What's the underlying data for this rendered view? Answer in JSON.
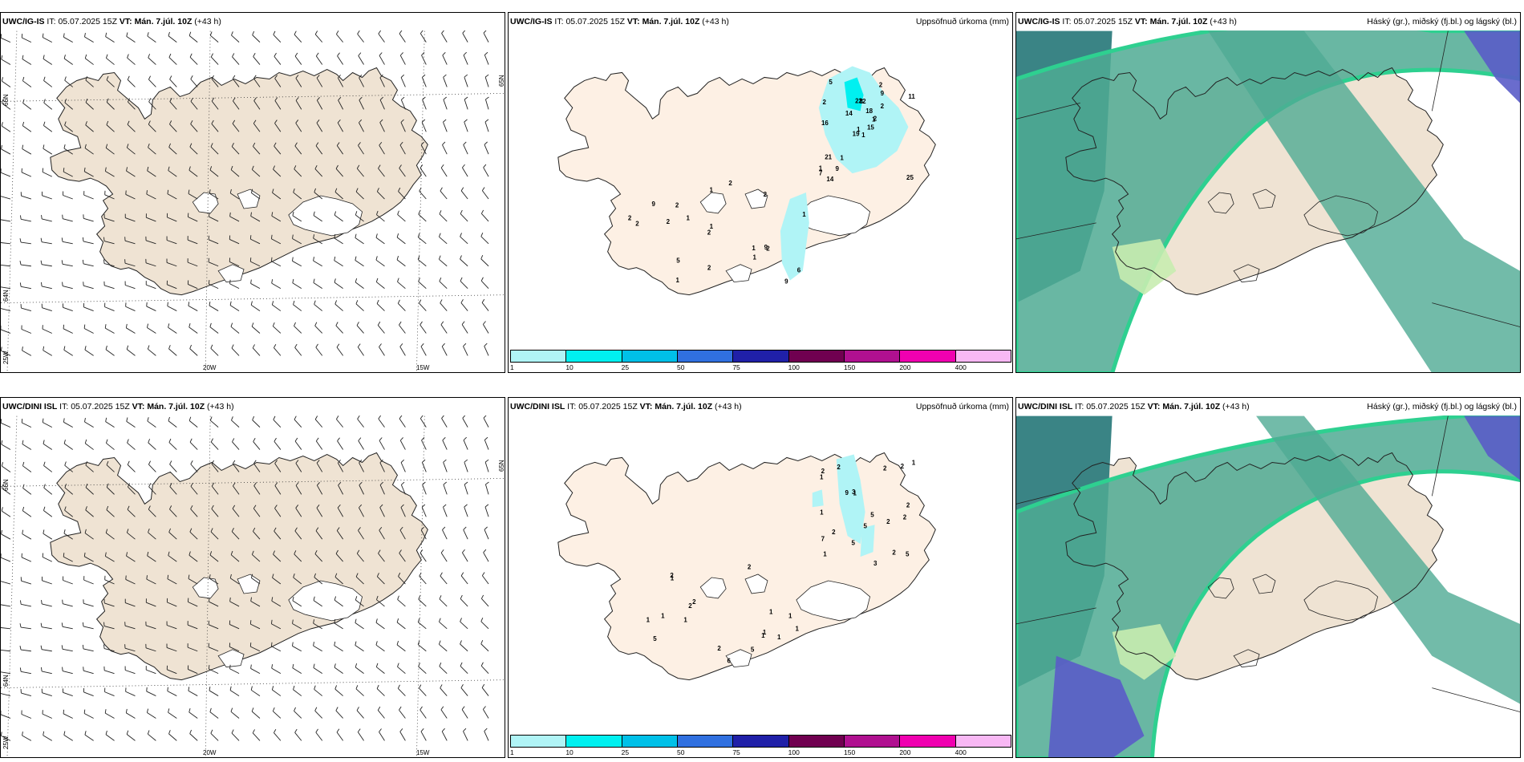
{
  "panels": [
    {
      "id": "r1c1",
      "model": "UWC/IG-IS",
      "it_label": "IT:",
      "it": "05.07.2025 15Z",
      "vt_label": "VT:",
      "vt": "Mán. 7.júl. 10Z",
      "lead": "(+43 h)",
      "right_title": "",
      "type": "wind"
    },
    {
      "id": "r1c2",
      "model": "UWC/IG-IS",
      "it_label": "IT:",
      "it": "05.07.2025 15Z",
      "vt_label": "VT:",
      "vt": "Mán. 7.júl. 10Z",
      "lead": "(+43 h)",
      "right_title": "Uppsöfnuð úrkoma (mm)",
      "type": "precip"
    },
    {
      "id": "r1c3",
      "model": "UWC/IG-IS",
      "it_label": "IT:",
      "it": "05.07.2025 15Z",
      "vt_label": "VT:",
      "vt": "Mán. 7.júl. 10Z",
      "lead": "(+43 h)",
      "right_title": "Háský (gr.), miðský (fj.bl.) og lágský (bl.)",
      "type": "cloud"
    },
    {
      "id": "r2c1",
      "model": "UWC/DINI ISL",
      "it_label": "IT:",
      "it": "05.07.2025 15Z",
      "vt_label": "VT:",
      "vt": "Mán. 7.júl. 10Z",
      "lead": "(+43 h)",
      "right_title": "",
      "type": "wind"
    },
    {
      "id": "r2c2",
      "model": "UWC/DINI ISL",
      "it_label": "IT:",
      "it": "05.07.2025 15Z",
      "vt_label": "VT:",
      "vt": "Mán. 7.júl. 10Z",
      "lead": "(+43 h)",
      "right_title": "Uppsöfnuð úrkoma (mm)",
      "type": "precip"
    },
    {
      "id": "r2c3",
      "model": "UWC/DINI ISL",
      "it_label": "IT:",
      "it": "05.07.2025 15Z",
      "vt_label": "VT:",
      "vt": "Mán. 7.júl. 10Z",
      "lead": "(+43 h)",
      "right_title": "Háský (gr.), miðský (fj.bl.) og lágský (bl.)",
      "type": "cloud"
    }
  ],
  "axis_labels": {
    "lat_66": "66N",
    "lat_64": "64N",
    "lat_65": "65N",
    "lon_20": "20W",
    "lon_15": "15W",
    "lon_25": "25W"
  },
  "colorbar": {
    "labels": [
      "1",
      "10",
      "25",
      "50",
      "75",
      "100",
      "150",
      "200",
      "400"
    ],
    "colors": [
      "#b0f4f6",
      "#00f0f0",
      "#00c0e8",
      "#3070e0",
      "#2020a8",
      "#700050",
      "#b01090",
      "#f000b0",
      "#f8b8f4"
    ]
  },
  "precip_numbers": {
    "r1c2": [
      "1",
      "2",
      "1",
      "1",
      "1",
      "1",
      "2",
      "2",
      "9",
      "15",
      "5",
      "25",
      "16",
      "11",
      "19",
      "2",
      "14",
      "22",
      "18",
      "21",
      "14",
      "7",
      "9",
      "8",
      "2",
      "2",
      "9",
      "1",
      "2",
      "1",
      "1",
      "2",
      "2",
      "1",
      "2",
      "2",
      "5",
      "9",
      "6",
      "9",
      "2",
      "1",
      "2",
      "1",
      "1",
      "2"
    ],
    "r2c2": [
      "2",
      "2",
      "1",
      "2",
      "1",
      "2",
      "7",
      "2",
      "9",
      "3",
      "1",
      "1",
      "2",
      "5",
      "5",
      "2",
      "5",
      "5",
      "3",
      "2",
      "1",
      "2",
      "2",
      "1",
      "2",
      "2",
      "1",
      "1",
      "1",
      "1",
      "6",
      "5",
      "2",
      "1",
      "1",
      "1",
      "1",
      "1",
      "2",
      "5"
    ]
  },
  "colors": {
    "land": "#efe3d3",
    "precip_land": "#fdf0e4",
    "dark_cloud": "#2f7d7e",
    "mid_cloud": "#4faa93",
    "green_band": "#2ed090",
    "high_cloud": "#5a5cc8",
    "light_green": "#c8ecb0"
  }
}
